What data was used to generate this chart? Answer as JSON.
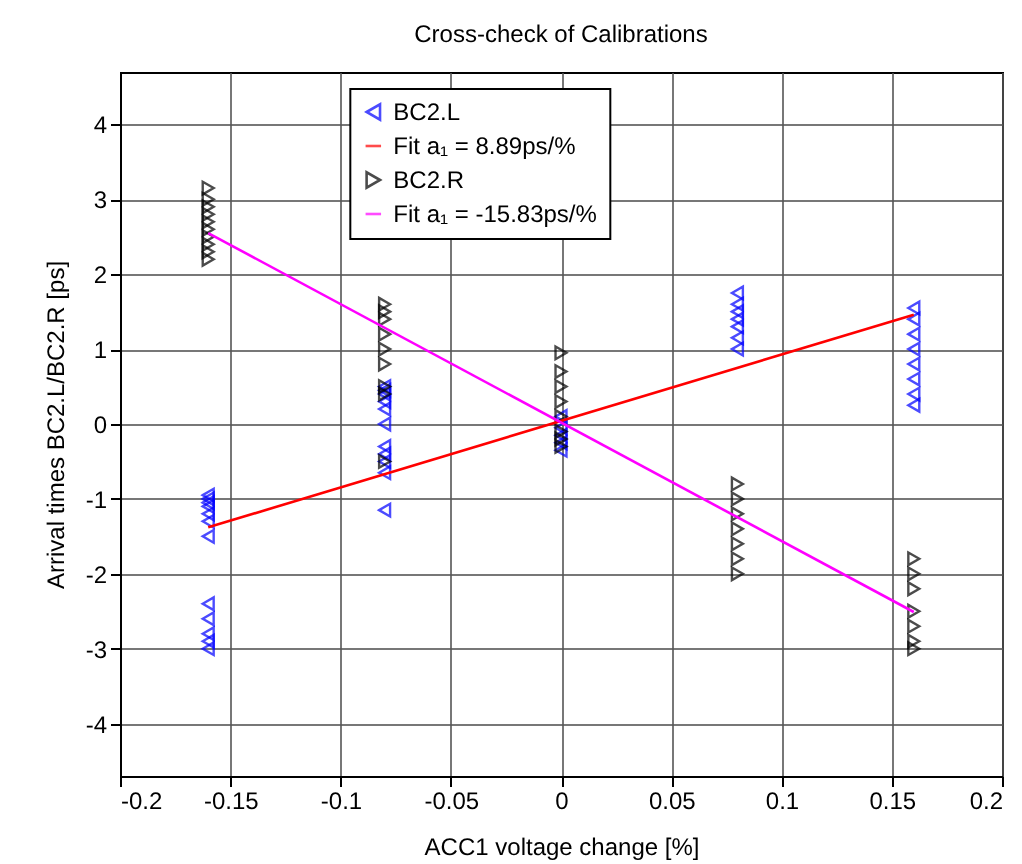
{
  "chart_data": {
    "type": "scatter",
    "title": "Cross-check of Calibrations",
    "xlabel": "ACC1 voltage change [%]",
    "ylabel": "Arrival times BC2.L/BC2.R [ps]",
    "xlim": [
      -0.2,
      0.2
    ],
    "xticks": [
      -0.2,
      -0.15,
      -0.1,
      -0.05,
      0,
      0.05,
      0.1,
      0.15,
      0.2
    ],
    "ylim": [
      -4.7,
      4.7
    ],
    "yticks": [
      -4,
      -3,
      -2,
      -1,
      0,
      1,
      2,
      3,
      4
    ],
    "grid": true,
    "legend": "top",
    "marker": "triangle",
    "series": [
      {
        "name": "BC2.L",
        "color": "#0000ff",
        "x": [
          -0.16,
          -0.16,
          -0.16,
          -0.16,
          -0.16,
          -0.16,
          -0.16,
          -0.16,
          -0.16,
          -0.16,
          -0.16,
          -0.16,
          -0.08,
          -0.08,
          -0.08,
          -0.08,
          -0.08,
          -0.08,
          -0.08,
          -0.08,
          -0.08,
          -0.08,
          -0.08,
          0,
          0,
          0,
          0,
          0,
          0.08,
          0.08,
          0.08,
          0.08,
          0.08,
          0.08,
          0.08,
          0.16,
          0.16,
          0.16,
          0.16,
          0.16,
          0.16,
          0.16,
          0.16
        ],
        "values": [
          -0.95,
          -1.0,
          -1.05,
          -1.1,
          -1.2,
          -1.3,
          -1.5,
          -2.4,
          -2.6,
          -2.8,
          -2.9,
          -3.0,
          0.5,
          0.45,
          0.4,
          0.3,
          0.2,
          0.0,
          -0.3,
          -0.4,
          -0.5,
          -0.65,
          -1.15,
          0.1,
          -0.05,
          -0.15,
          -0.25,
          -0.35,
          1.75,
          1.6,
          1.5,
          1.4,
          1.3,
          1.15,
          1.0,
          1.55,
          1.4,
          1.2,
          1.0,
          0.8,
          0.6,
          0.4,
          0.25
        ]
      },
      {
        "name": "Fit a₁ = 8.89ps/%",
        "type": "line",
        "marker": "none",
        "color": "#ff0000",
        "x": [
          -0.16,
          0.16
        ],
        "values": [
          -1.38,
          1.46
        ]
      },
      {
        "name": "BC2.R",
        "color": "#000000",
        "x": [
          -0.16,
          -0.16,
          -0.16,
          -0.16,
          -0.16,
          -0.16,
          -0.16,
          -0.16,
          -0.16,
          -0.16,
          -0.08,
          -0.08,
          -0.08,
          -0.08,
          -0.08,
          -0.08,
          -0.08,
          -0.08,
          -0.08,
          0,
          0,
          0,
          0,
          0,
          0,
          0,
          0,
          0.08,
          0.08,
          0.08,
          0.08,
          0.08,
          0.08,
          0.08,
          0.16,
          0.16,
          0.16,
          0.16,
          0.16,
          0.16,
          0.16
        ],
        "values": [
          3.15,
          3.0,
          2.9,
          2.8,
          2.7,
          2.6,
          2.5,
          2.4,
          2.3,
          2.2,
          1.6,
          1.5,
          1.4,
          1.2,
          1.0,
          0.8,
          0.5,
          0.4,
          -0.5,
          0.95,
          0.7,
          0.5,
          0.3,
          0.1,
          -0.1,
          -0.2,
          -0.3,
          -0.8,
          -1.0,
          -1.2,
          -1.4,
          -1.6,
          -1.8,
          -2.0,
          -1.8,
          -2.0,
          -2.2,
          -2.5,
          -2.7,
          -2.9,
          -3.0
        ]
      },
      {
        "name": "Fit a₁ = -15.83ps/%",
        "type": "line",
        "marker": "none",
        "color": "#ff00ff",
        "x": [
          -0.16,
          0.16
        ],
        "values": [
          2.55,
          -2.51
        ]
      }
    ]
  }
}
